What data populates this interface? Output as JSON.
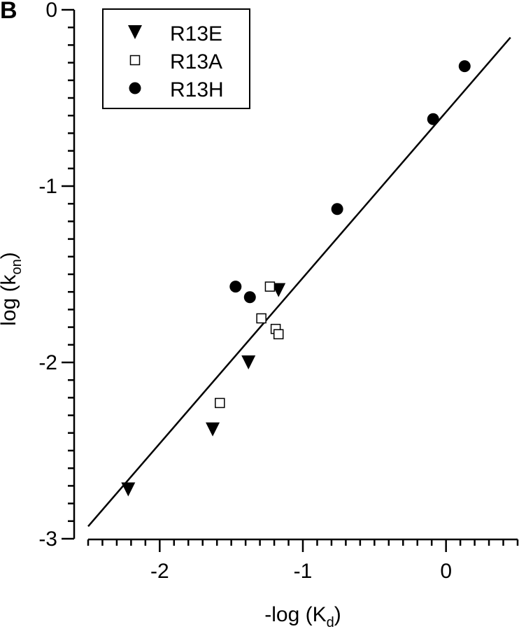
{
  "panel_label": "B",
  "chart_data": {
    "type": "scatter",
    "xlabel": "-log (K",
    "xlabel_sub": "d",
    "xlabel_close": ")",
    "ylabel": "log (k",
    "ylabel_sub": "on",
    "ylabel_close": ")",
    "xlim": [
      -2.5,
      0.5
    ],
    "ylim": [
      -3,
      0
    ],
    "x_ticks": [
      -2,
      -1,
      0
    ],
    "x_tick_labels": [
      "-2",
      "-1",
      "0"
    ],
    "y_ticks": [
      -3,
      -2,
      -1,
      0
    ],
    "y_tick_labels": [
      "-3",
      "-2",
      "-1",
      "0"
    ],
    "legend_position": "top-left",
    "series": [
      {
        "name": "R13E",
        "marker": "triangle-down-filled",
        "x": [
          -2.22,
          -1.63,
          -1.38,
          -1.17
        ],
        "y": [
          -2.72,
          -2.38,
          -2.0,
          -1.59
        ]
      },
      {
        "name": "R13A",
        "marker": "square-open",
        "x": [
          -1.58,
          -1.29,
          -1.23,
          -1.19,
          -1.17
        ],
        "y": [
          -2.23,
          -1.75,
          -1.57,
          -1.81,
          -1.84
        ]
      },
      {
        "name": "R13H",
        "marker": "circle-filled",
        "x": [
          -1.47,
          -1.37,
          -0.76,
          -0.09,
          0.13
        ],
        "y": [
          -1.57,
          -1.63,
          -1.13,
          -0.62,
          -0.32
        ]
      }
    ],
    "fit_line": {
      "slope": 0.94,
      "intercept": -0.58,
      "x_range": [
        -2.5,
        0.45
      ]
    }
  }
}
